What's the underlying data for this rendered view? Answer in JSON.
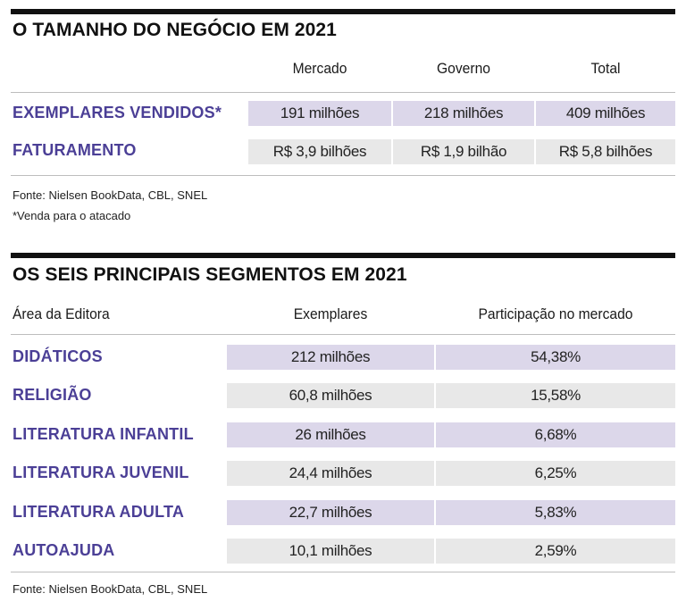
{
  "business": {
    "title": "O TAMANHO DO NEGÓCIO EM 2021",
    "columns": [
      "Mercado",
      "Governo",
      "Total"
    ],
    "rows": [
      {
        "label": "EXEMPLARES VENDIDOS*",
        "values": [
          "191 milhões",
          "218 milhões",
          "409 milhões"
        ]
      },
      {
        "label": "FATURAMENTO",
        "values": [
          "R$ 3,9 bilhões",
          "R$ 1,9 bilhão",
          "R$ 5,8 bilhões"
        ]
      }
    ],
    "source": "Fonte: Nielsen BookData, CBL, SNEL",
    "footnote": "*Venda para o atacado"
  },
  "segments": {
    "title": "OS SEIS PRINCIPAIS SEGMENTOS EM 2021",
    "columns": [
      "Área da Editora",
      "Exemplares",
      "Participação no mercado"
    ],
    "rows": [
      {
        "label": "DIDÁTICOS",
        "copies": "212 milhões",
        "share": "54,38%"
      },
      {
        "label": "RELIGIÃO",
        "copies": "60,8 milhões",
        "share": "15,58%"
      },
      {
        "label": "LITERATURA INFANTIL",
        "copies": "26 milhões",
        "share": "6,68%"
      },
      {
        "label": "LITERATURA JUVENIL",
        "copies": "24,4 milhões",
        "share": "6,25%"
      },
      {
        "label": "LITERATURA ADULTA",
        "copies": "22,7 milhões",
        "share": "5,83%"
      },
      {
        "label": "AUTOAJUDA",
        "copies": "10,1 milhões",
        "share": "2,59%"
      }
    ],
    "source": "Fonte: Nielsen BookData, CBL, SNEL"
  },
  "colors": {
    "accent": "#4b3f96",
    "row_purple": "#dcd7ea",
    "row_grey": "#e8e8e8",
    "rule": "#111111"
  }
}
